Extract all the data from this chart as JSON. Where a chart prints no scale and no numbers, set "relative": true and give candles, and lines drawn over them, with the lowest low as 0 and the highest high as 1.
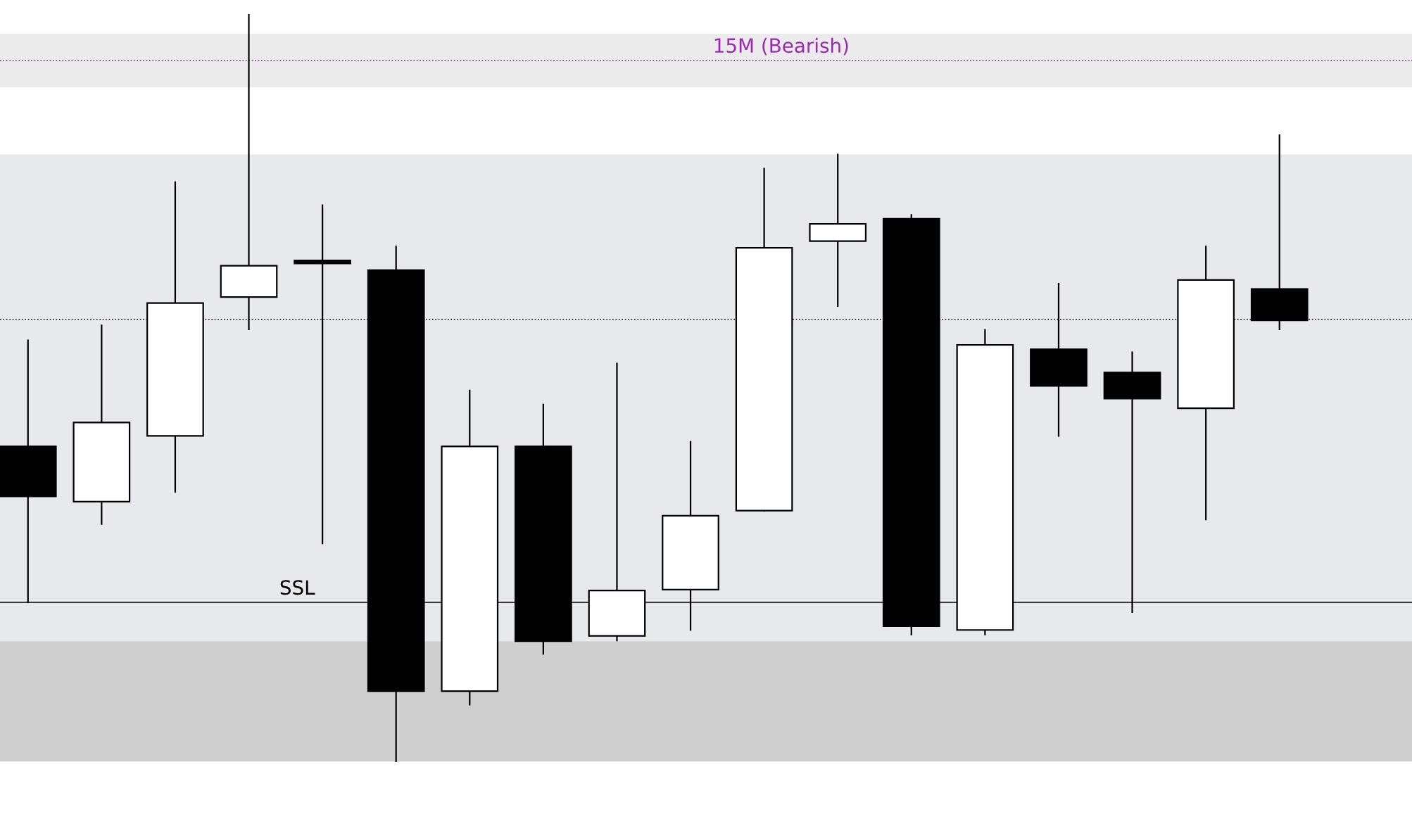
{
  "chart_data": {
    "type": "candlestick",
    "relative": true,
    "categories": [
      null,
      null,
      null,
      null,
      null,
      null,
      null,
      null,
      null,
      null,
      null,
      null,
      null,
      null,
      null,
      null,
      null,
      null
    ],
    "ohlc": [
      [
        0.422,
        0.564,
        0.213,
        0.355
      ],
      [
        0.348,
        0.584,
        0.318,
        0.454
      ],
      [
        0.436,
        0.776,
        0.361,
        0.614
      ],
      [
        0.622,
        1,
        0.579,
        0.664
      ],
      [
        0.669,
        0.745,
        0.292,
        0.667
      ],
      [
        0.658,
        0.69,
        0,
        0.094
      ],
      [
        0.094,
        0.497,
        0.076,
        0.422
      ],
      [
        0.422,
        0.478,
        0.144,
        0.161
      ],
      [
        0.168,
        0.533,
        0.162,
        0.229
      ],
      [
        0.23,
        0.428,
        0.176,
        0.329
      ],
      [
        0.336,
        0.794,
        0.336,
        0.688
      ],
      [
        0.697,
        0.813,
        0.61,
        0.72
      ],
      [
        0.727,
        0.732,
        0.17,
        0.181
      ],
      [
        0.176,
        0.578,
        0.17,
        0.558
      ],
      [
        0.552,
        0.64,
        0.436,
        0.503
      ],
      [
        0.521,
        0.548,
        0.2,
        0.486
      ],
      [
        0.473,
        0.69,
        0.324,
        0.645
      ],
      [
        0.633,
        0.839,
        0.579,
        0.591
      ]
    ],
    "colors": [
      "#000000",
      "#ffffff",
      "#ffffff",
      "#ffffff",
      "#000000",
      "#000000",
      "#ffffff",
      "#000000",
      "#ffffff",
      "#ffffff",
      "#ffffff",
      "#ffffff",
      "#000000",
      "#ffffff",
      "#000000",
      "#000000",
      "#ffffff",
      "#000000"
    ],
    "bands": [
      {
        "axis": "y",
        "from": 0.903,
        "to": 0.975,
        "color": "#ebebeb"
      },
      {
        "axis": "y",
        "from": 0.161,
        "to": 0.813,
        "color": "#e8e9ec"
      },
      {
        "axis": "y",
        "from": 0,
        "to": 0.161,
        "color": "#cfcfcf"
      }
    ],
    "ref_lines": [
      {
        "axis": "y",
        "value": 0.939,
        "label": "15M (Bearish)",
        "color": "#9c27b0",
        "line_style": "dotted"
      },
      {
        "axis": "y",
        "value": 0.592,
        "color": "#000000",
        "line_style": "dotted"
      },
      {
        "axis": "y",
        "value": 0.213,
        "label": "SSL",
        "color": "#000000",
        "line_style": "solid"
      }
    ]
  }
}
